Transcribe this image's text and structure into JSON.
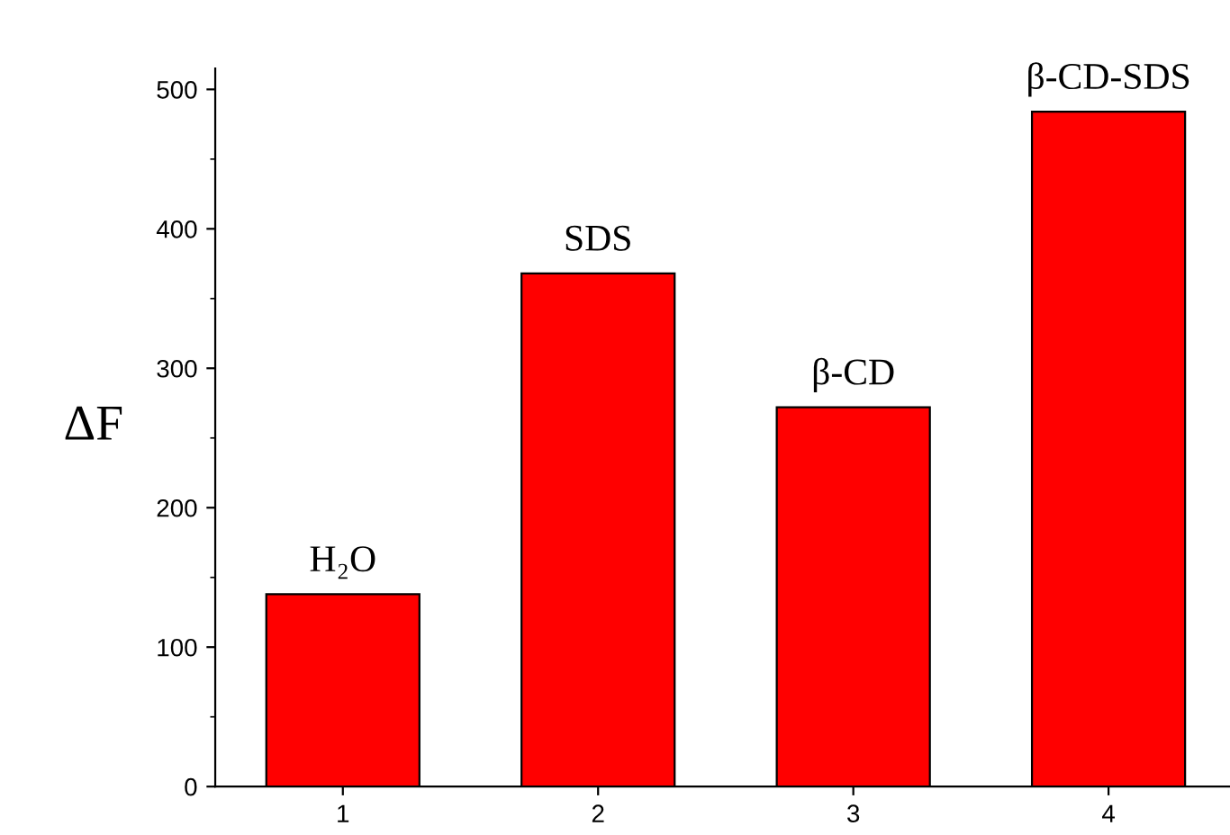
{
  "chart_data": {
    "type": "bar",
    "ylabel": "ΔF",
    "x": [
      1,
      2,
      3,
      4
    ],
    "values": [
      138,
      368,
      272,
      484
    ],
    "color": "#ff0000",
    "xlim": [
      0.5,
      4.5
    ],
    "xticks": [
      1,
      2,
      3,
      4
    ],
    "ylim": [
      0,
      515
    ],
    "yticks": [
      0,
      100,
      200,
      300,
      400,
      500
    ],
    "grid": false,
    "legend": false,
    "annotations": [
      {
        "text": "H₂O",
        "x": 1,
        "y": 138
      },
      {
        "text": "SDS",
        "x": 2,
        "y": 368
      },
      {
        "text": "β-CD",
        "x": 3,
        "y": 272
      },
      {
        "text": "β-CD-SDS",
        "x": 4,
        "y": 484
      }
    ]
  }
}
